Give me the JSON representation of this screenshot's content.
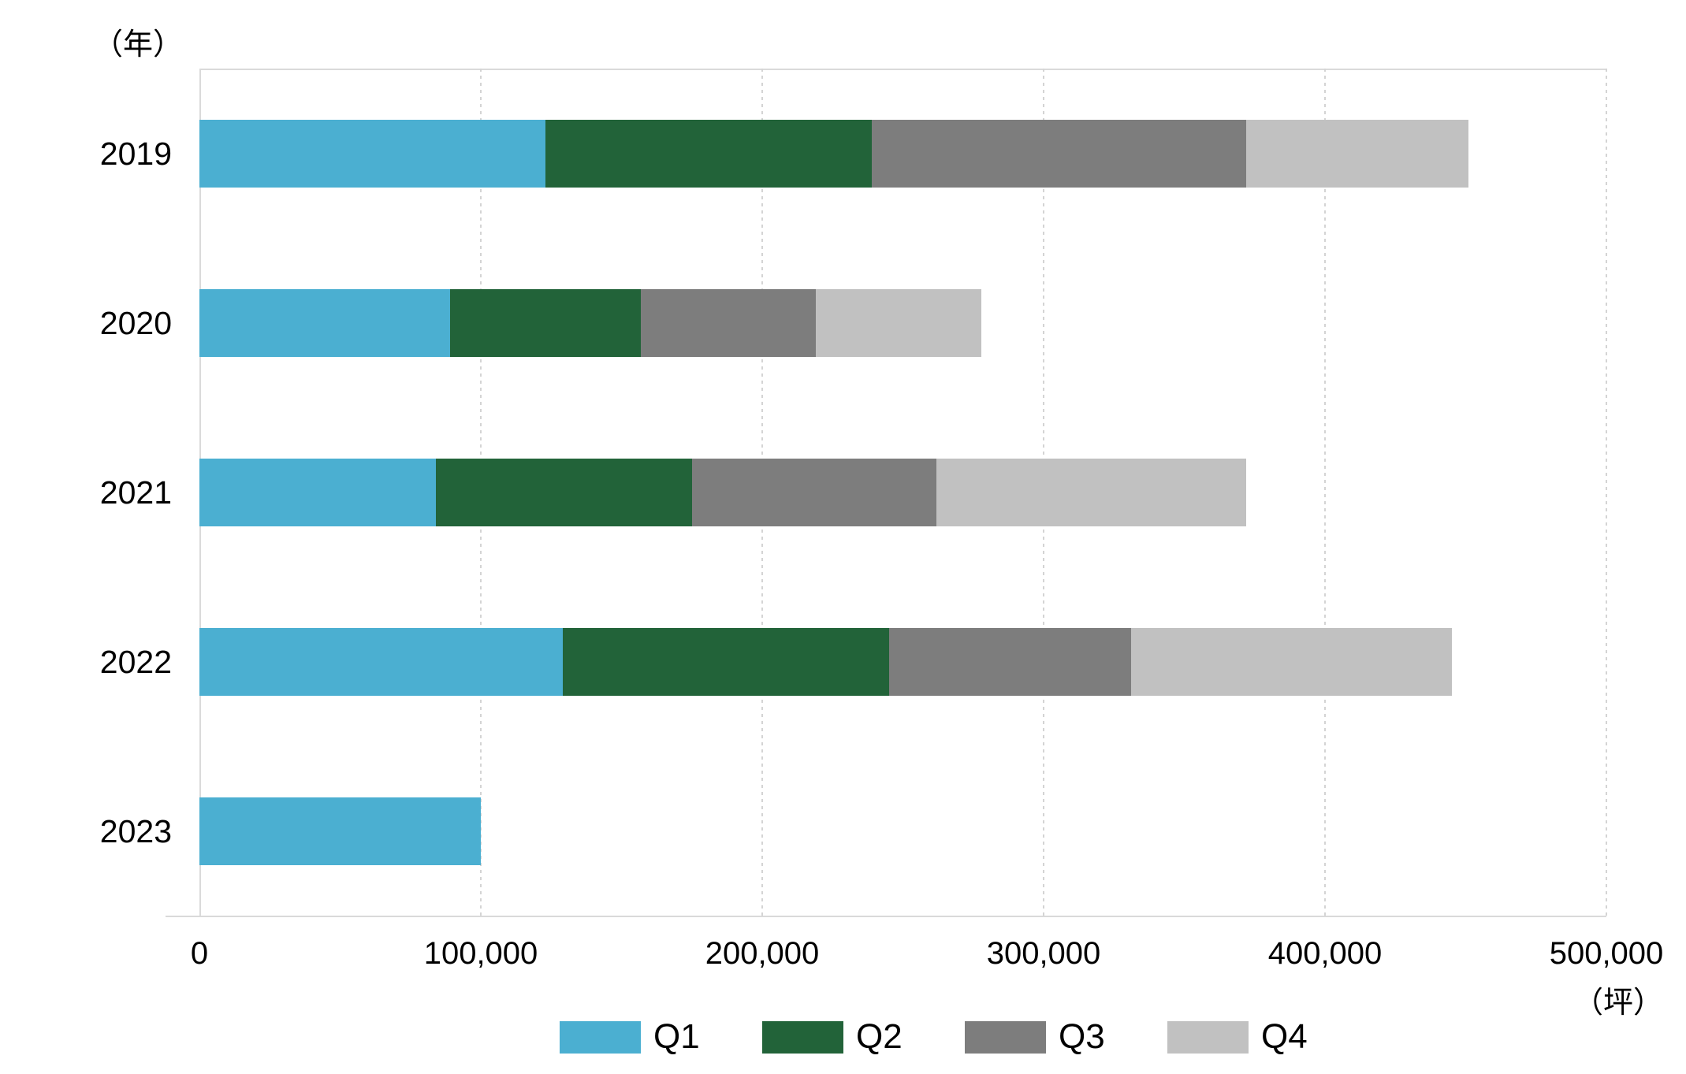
{
  "chart_data": {
    "type": "bar",
    "orientation": "horizontal",
    "stacked": true,
    "title": "",
    "categories": [
      "2019",
      "2020",
      "2021",
      "2022",
      "2023"
    ],
    "series": [
      {
        "name": "Q1",
        "color": "#4BAFD1",
        "values": [
          123000,
          89000,
          84000,
          129000,
          100000
        ]
      },
      {
        "name": "Q2",
        "color": "#226339",
        "values": [
          116000,
          68000,
          91000,
          116000,
          0
        ]
      },
      {
        "name": "Q3",
        "color": "#7D7D7D",
        "values": [
          133000,
          62000,
          87000,
          86000,
          0
        ]
      },
      {
        "name": "Q4",
        "color": "#C1C1C1",
        "values": [
          79000,
          59000,
          110000,
          114000,
          0
        ]
      }
    ],
    "x_axis": {
      "min": 0,
      "max": 500000,
      "tick_interval": 100000,
      "ticks": [
        0,
        100000,
        200000,
        300000,
        400000,
        500000
      ],
      "tick_labels": [
        "0",
        "100,000",
        "200,000",
        "300,000",
        "400,000",
        "500,000"
      ],
      "unit_label": "（坪）"
    },
    "y_axis": {
      "unit_label": "（年）"
    },
    "legend": {
      "position": "bottom",
      "entries": [
        "Q1",
        "Q2",
        "Q3",
        "Q4"
      ]
    },
    "grid": true,
    "style": {
      "background": "#FFFFFF",
      "text_color": "#000000",
      "gridline_color": "#D4D4D4",
      "axis_line_color": "#D9D9D9",
      "plot_border_color": "#DADADA"
    }
  }
}
